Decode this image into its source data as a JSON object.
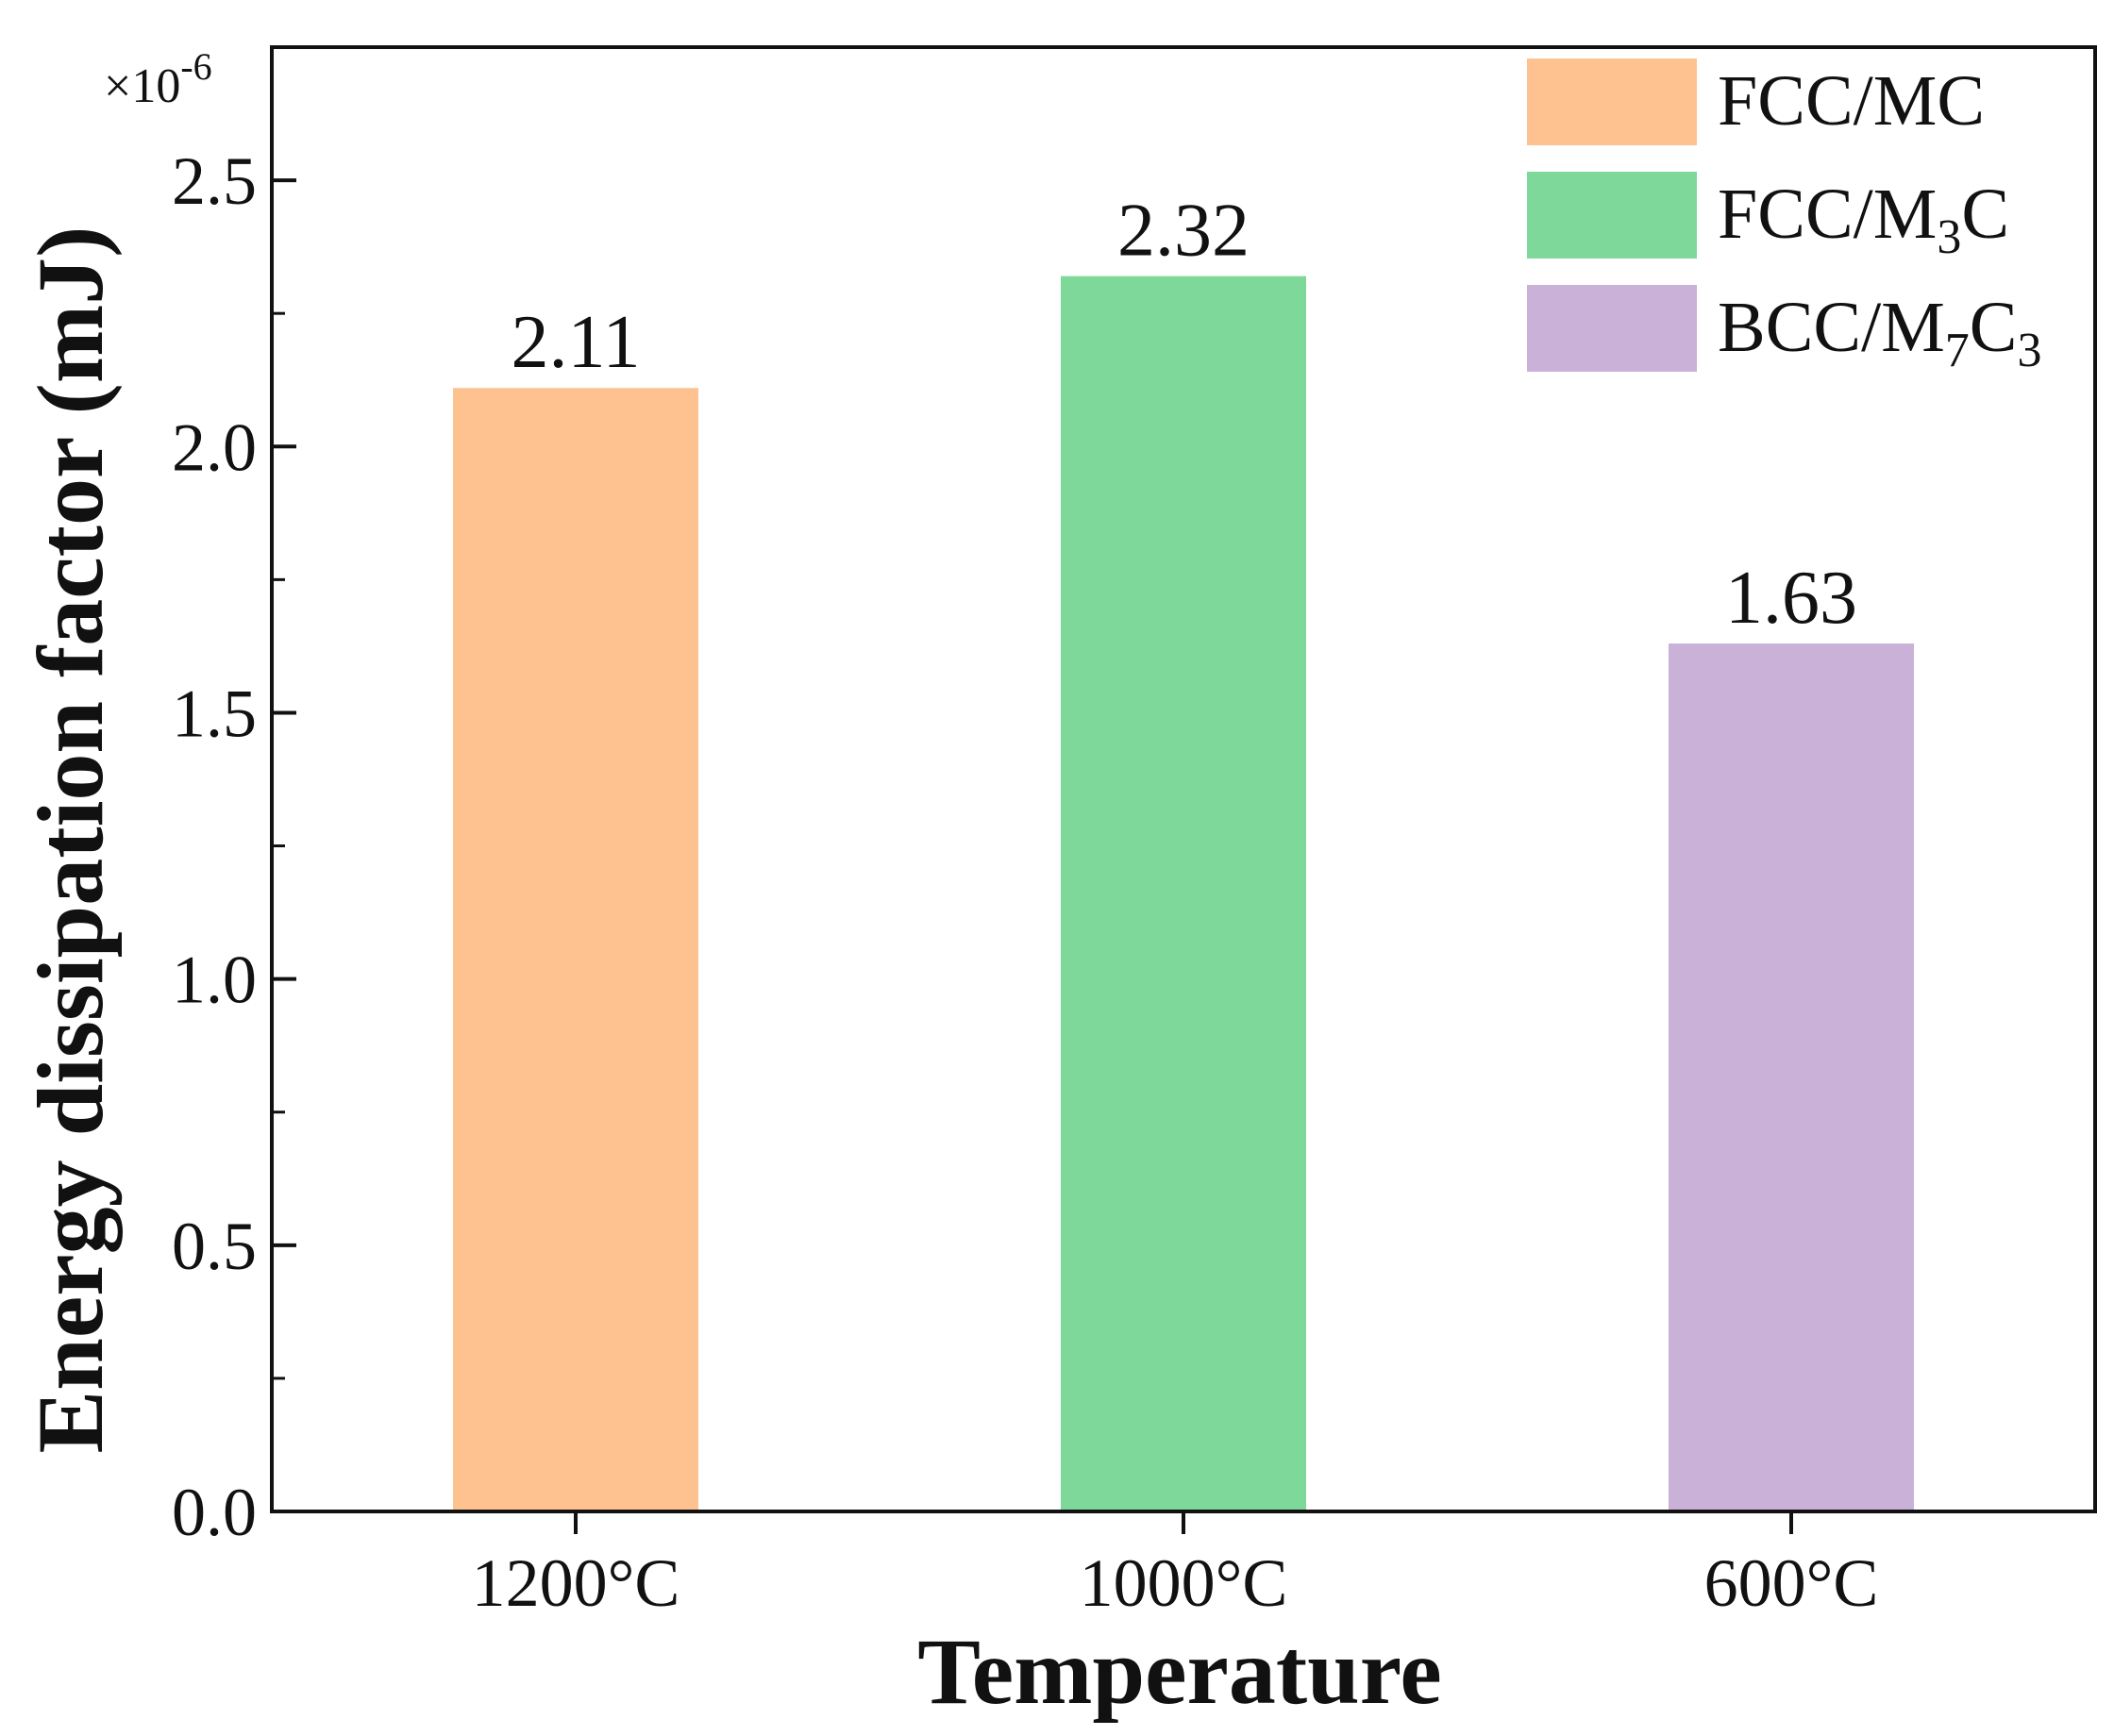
{
  "chart_data": {
    "type": "bar",
    "categories": [
      "1200°C",
      "1000°C",
      "600°C"
    ],
    "values": [
      2.11,
      2.32,
      1.63
    ],
    "value_labels": [
      "2.11",
      "2.32",
      "1.63"
    ],
    "series_names": [
      "FCC/MC",
      "FCC/M3C",
      "BCC/M7C3"
    ],
    "colors": [
      "#FDC290",
      "#7ED89A",
      "#C9B1D7"
    ],
    "xlabel": "Temperature",
    "ylabel": "Energy dissipation factor (mJ)",
    "ylim": [
      0,
      2.75
    ],
    "yticks": [
      0.0,
      0.5,
      1.0,
      1.5,
      2.0,
      2.5
    ],
    "ytick_labels": [
      "0.0",
      "0.5",
      "1.0",
      "1.5",
      "2.0",
      "2.5"
    ],
    "y_multiplier": "×10",
    "y_multiplier_exponent": "-6",
    "legend_position": "top-right",
    "legend": [
      {
        "base": "FCC/M",
        "sub1": "",
        "mid": "C",
        "sub2": ""
      },
      {
        "base": "FCC/M",
        "sub1": "3",
        "mid": "C",
        "sub2": ""
      },
      {
        "base": "BCC/M",
        "sub1": "7",
        "mid": "C",
        "sub2": "3"
      }
    ]
  }
}
